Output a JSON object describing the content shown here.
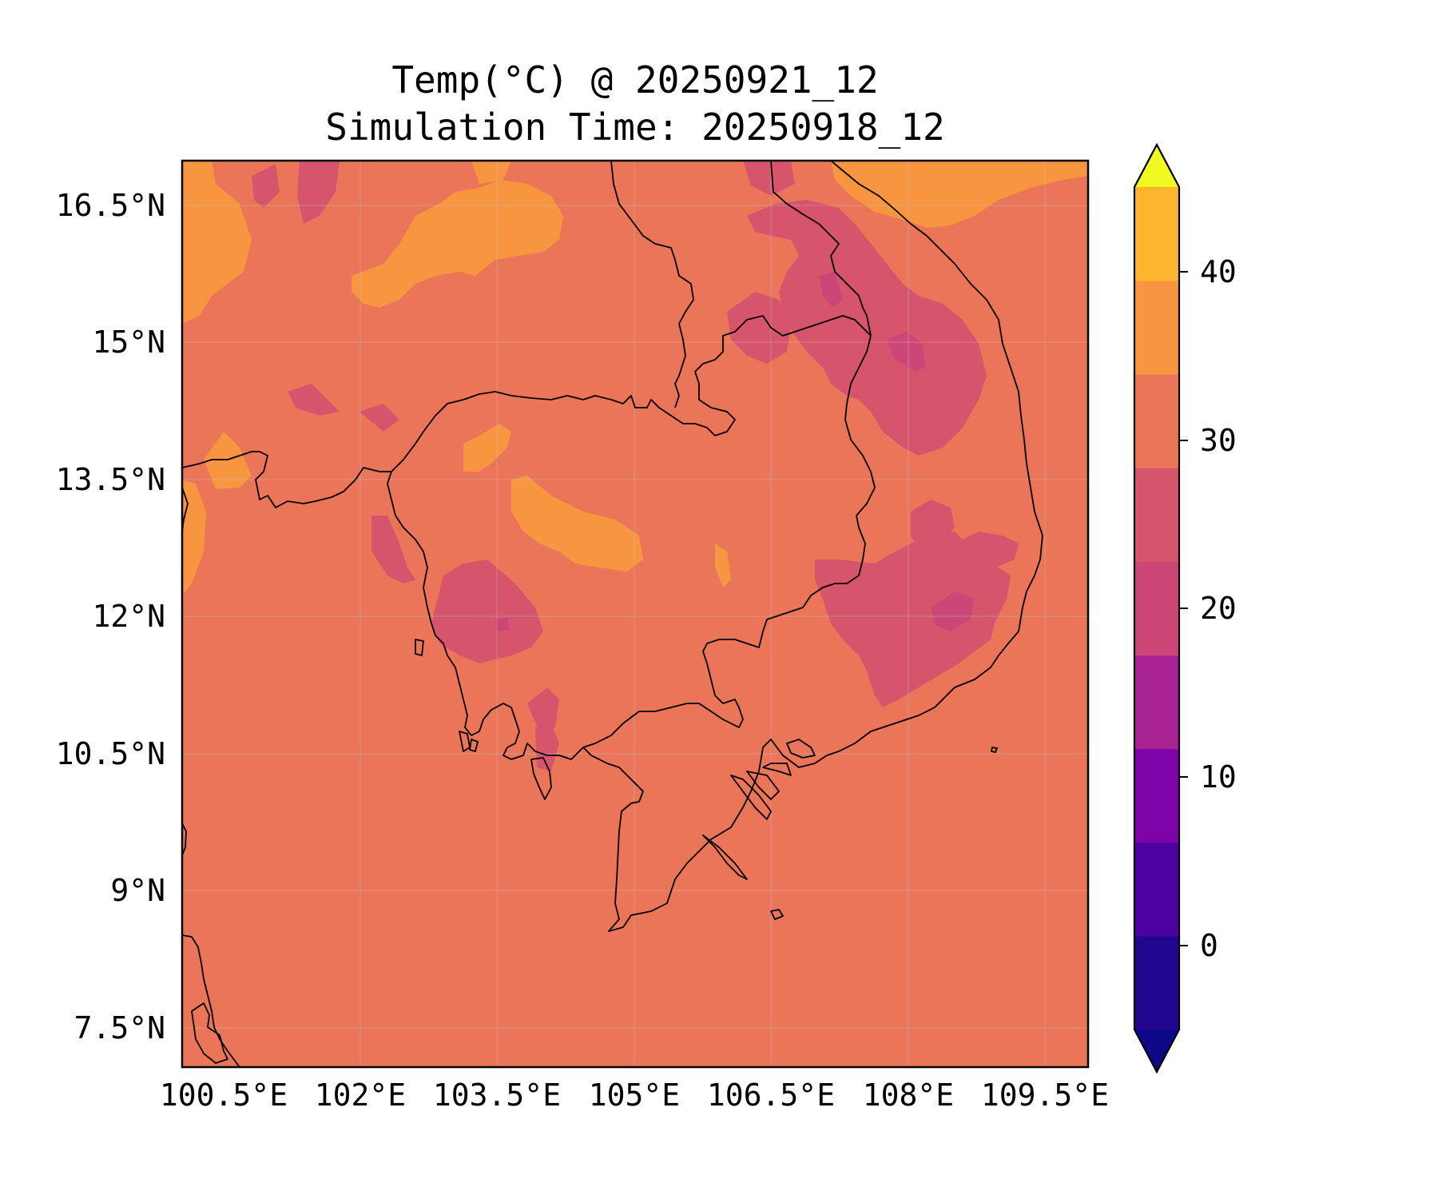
{
  "title": {
    "line1": "Temp(°C) @ 20250921_12",
    "line2": "Simulation Time: 20250918_12"
  },
  "map": {
    "lon_ticks": [
      "100.5°E",
      "102°E",
      "103.5°E",
      "105°E",
      "106.5°E",
      "108°E",
      "109.5°E"
    ],
    "lat_ticks": [
      "16.5°N",
      "15°N",
      "13.5°N",
      "12°N",
      "10.5°N",
      "9°N",
      "7.5°N"
    ],
    "background_color": "#ea7558",
    "gridlines": true
  },
  "colorbar": {
    "ticks": [
      "40",
      "30",
      "20",
      "10",
      "0"
    ],
    "levels_colors": [
      "#0d0887",
      "#220690",
      "#4c02a1",
      "#7e03a8",
      "#a92395",
      "#cc4778",
      "#d6556d",
      "#ea7558",
      "#f89540",
      "#fdb42f",
      "#f0f921"
    ],
    "extend": "both"
  }
}
